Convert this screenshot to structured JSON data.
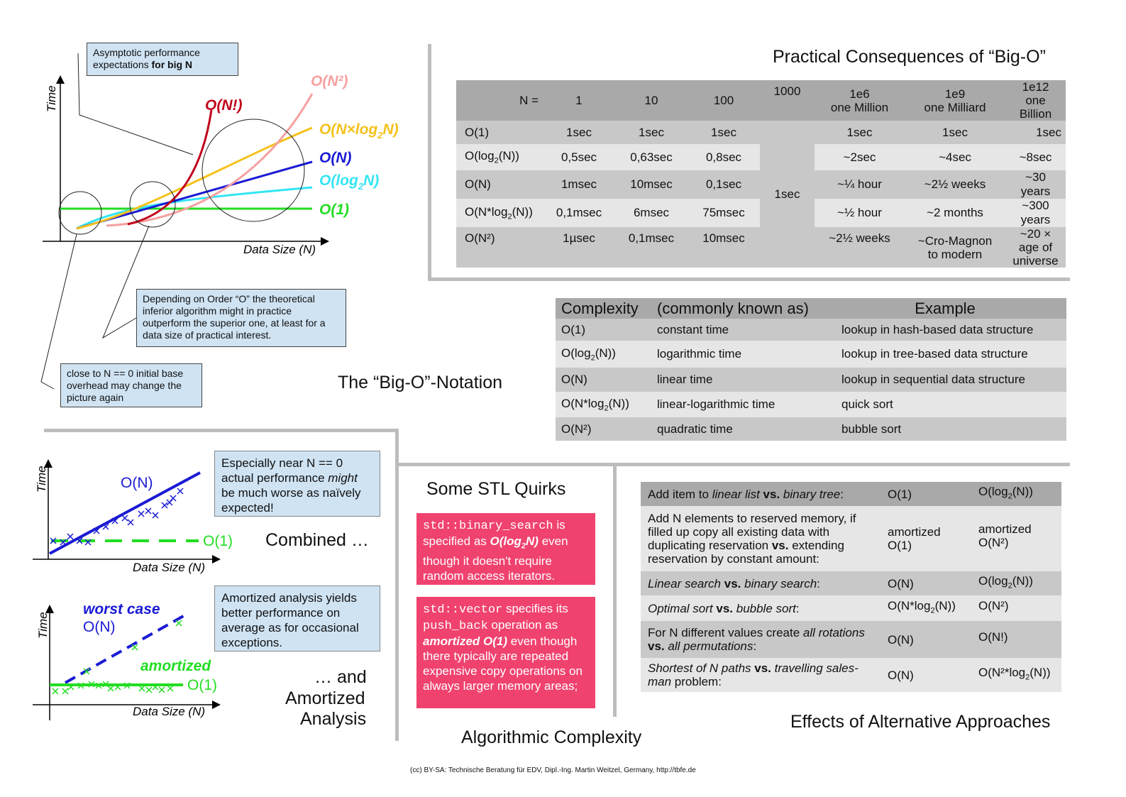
{
  "top_diagram": {
    "ylabel": "Time",
    "xlabel": "Data Size (N)",
    "labels": {
      "nfact": "O(N!)",
      "n2": "O(N²)",
      "nlogn_a": "O(N×log",
      "nlogn_sub": "2",
      "nlogn_b": "N)",
      "n": "O(N)",
      "logn_a": "O(log",
      "logn_sub": "2",
      "logn_b": "N)",
      "one": "O(1)"
    },
    "colors": {
      "nfact": "#c0001a",
      "n2": "#f7a0a0",
      "nlogn": "#f5c21b",
      "n": "#1a1ad4",
      "logn": "#33e5f5",
      "one": "#22dd22"
    },
    "note_bign_a": "Asymptotic performance",
    "note_bign_b": "expectations ",
    "note_bign_bold": "for big N",
    "note_depend": "Depending on Order “O” the theoretical inferior algorithm might in practice outperform the superior one, at least for a data size of practical interest.",
    "note_close": "close to N == 0 initial base overhead may change the picture again",
    "section_title": "The “Big-O”-Notation"
  },
  "practical": {
    "title": "Practical Consequences of “Big-O”",
    "header": [
      "N =",
      "1",
      "10",
      "100",
      "1000",
      "1e6\none Million",
      "1e9\none Milliard",
      "1e12\none Billion"
    ],
    "merged_1000": "1sec",
    "rows": [
      {
        "label_a": "O(1)",
        "label_sub": "",
        "label_b": "",
        "cells": [
          "1sec",
          "1sec",
          "1sec",
          "1sec",
          "1sec",
          "1sec"
        ]
      },
      {
        "label_a": "O(log",
        "label_sub": "2",
        "label_b": "(N))",
        "cells": [
          "0,5sec",
          "0,63sec",
          "0,8sec",
          "~2sec",
          "~4sec",
          "~8sec"
        ]
      },
      {
        "label_a": "O(N)",
        "label_sub": "",
        "label_b": "",
        "cells": [
          "1msec",
          "10msec",
          "0,1sec",
          "~¼ hour",
          "~2½ weeks",
          "~30 years"
        ]
      },
      {
        "label_a": "O(N*log",
        "label_sub": "2",
        "label_b": "(N))",
        "cells": [
          "0,1msec",
          "6msec",
          "75msec",
          "~½ hour",
          "~2 months",
          "~300 years"
        ]
      },
      {
        "label_a": "O(N²)",
        "label_sub": "",
        "label_b": "",
        "cells": [
          "1µsec",
          "0,1msec",
          "10msec",
          "~2½ weeks",
          "~Cro-Magnon\nto modern",
          "~20 × age of\nuniverse"
        ]
      }
    ]
  },
  "complexity": {
    "header": [
      "Complexity",
      "(commonly known as)",
      "Example"
    ],
    "rows": [
      {
        "c_a": "O(1)",
        "c_sub": "",
        "c_b": "",
        "name": "constant time",
        "example": "lookup in hash-based data structure"
      },
      {
        "c_a": "O(log",
        "c_sub": "2",
        "c_b": "(N))",
        "name": "logarithmic time",
        "example": "lookup in tree-based data structure"
      },
      {
        "c_a": "O(N)",
        "c_sub": "",
        "c_b": "",
        "name": "linear time",
        "example": "lookup in sequential data structure"
      },
      {
        "c_a": "O(N*log",
        "c_sub": "2",
        "c_b": "(N))",
        "name": "linear-logarithmic time",
        "example": "quick sort"
      },
      {
        "c_a": "O(N²)",
        "c_sub": "",
        "c_b": "",
        "name": "quadratic time",
        "example": "bubble sort"
      }
    ]
  },
  "combined": {
    "ylabel": "Time",
    "xlabel": "Data Size (N)",
    "on_label": "O(N)",
    "o1_label": "O(1)",
    "note_a": "Especially near N == 0 actual performance ",
    "note_might": "might",
    "note_b": " be much worse as naïvely expected!",
    "title": "Combined …"
  },
  "amortized": {
    "ylabel": "Time",
    "xlabel": "Data Size (N)",
    "worst_a": "worst case",
    "worst_b": "O(N)",
    "amort_label": "amortized",
    "o1_label": "O(1)",
    "note": "Amortized analysis yields better performance on average as for occasional exceptions.",
    "title_a": "… and",
    "title_b": "Amortized",
    "title_c": "Analysis"
  },
  "stl": {
    "title": "Some STL Quirks",
    "box1": {
      "code": "std::binary_search",
      "t1": " is specified as ",
      "bold_a": "O(log",
      "bold_sub": "2",
      "bold_b": "N)",
      "t2": " even though it doesn't require random access iterators."
    },
    "box2": {
      "code": "std::vector",
      "t1": " specifies its ",
      "code2": "push_back",
      "t2": " operation as ",
      "bold": "amortized O(1)",
      "t3": " even though there typically are repeated expensive copy operations on always larger memory areas;"
    }
  },
  "effects": {
    "title": "Effects of Alternative Approaches",
    "rows": [
      {
        "desc": [
          [
            "Add item to ",
            ""
          ],
          [
            "linear list",
            "i"
          ],
          [
            " vs.",
            "b"
          ],
          [
            " ",
            ""
          ],
          [
            "binary tree",
            "i"
          ],
          [
            ":",
            ""
          ]
        ],
        "a": "O(1)",
        "b_a": "O(log",
        "b_sub": "2",
        "b_b": "(N))"
      },
      {
        "desc": [
          [
            "Add N elements to reserved memory, if filled up copy all existing data with duplicating reservation ",
            ""
          ],
          [
            "vs.",
            "b"
          ],
          [
            " extending reservation by constant amount:",
            ""
          ]
        ],
        "a": "amortized\nO(1)",
        "b_a": "amortized\nO(N²)",
        "b_sub": "",
        "b_b": ""
      },
      {
        "desc": [
          [
            "Linear search",
            "i"
          ],
          [
            " vs.",
            "b"
          ],
          [
            " ",
            ""
          ],
          [
            "binary search",
            "i"
          ],
          [
            ":",
            ""
          ]
        ],
        "a": "O(N)",
        "b_a": "O(log",
        "b_sub": "2",
        "b_b": "(N))"
      },
      {
        "desc": [
          [
            "Optimal sort",
            "i"
          ],
          [
            " vs.",
            "b"
          ],
          [
            " ",
            ""
          ],
          [
            "bubble sort",
            "i"
          ],
          [
            ":",
            ""
          ]
        ],
        "a_a": "O(N*log",
        "a_sub": "2",
        "a_b": "(N))",
        "b_a": "O(N²)",
        "b_sub": "",
        "b_b": ""
      },
      {
        "desc": [
          [
            "For N different values create ",
            ""
          ],
          [
            "all rotations",
            "i"
          ],
          [
            " vs.",
            "b"
          ],
          [
            " ",
            ""
          ],
          [
            "all permutations",
            "i"
          ],
          [
            ":",
            ""
          ]
        ],
        "a": "O(N)",
        "b_a": "O(N!)",
        "b_sub": "",
        "b_b": ""
      },
      {
        "desc": [
          [
            "Shortest of N paths",
            "i"
          ],
          [
            " vs.",
            "b"
          ],
          [
            " ",
            ""
          ],
          [
            "travelling sales-man",
            "i"
          ],
          [
            " problem:",
            ""
          ]
        ],
        "a": "O(N)",
        "b_a": "O(N²*log",
        "b_sub": "2",
        "b_b": "(N))"
      }
    ]
  },
  "main_title": "Algorithmic Complexity",
  "footer": "(cc) BY-SA: Technische Beratung für EDV, Dipl.-Ing. Martin Weitzel, Germany, http://tbfe.de"
}
